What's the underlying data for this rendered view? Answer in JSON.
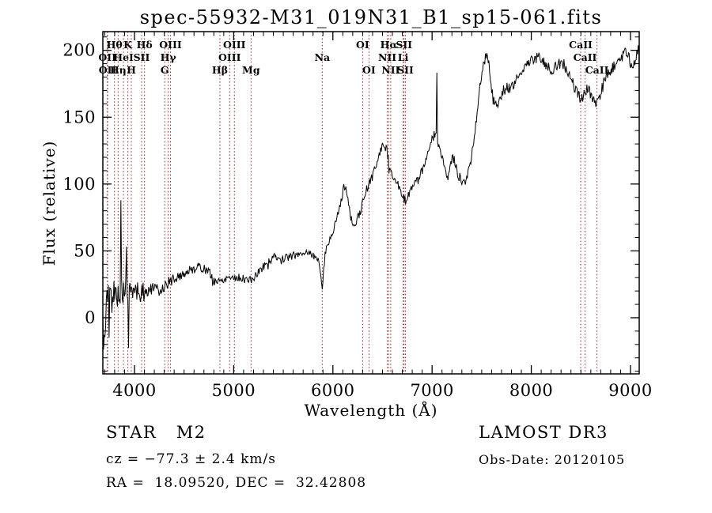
{
  "window": {
    "background": "#ffffff"
  },
  "chart_data": {
    "type": "line",
    "title": "spec-55932-M31_019N31_B1_sp15-061.fits",
    "xlabel": "Wavelength (Å)",
    "ylabel": "Flux (relative)",
    "xlim": [
      3681,
      9088
    ],
    "ylim": [
      -42,
      214
    ],
    "grid": false,
    "legend": "none",
    "frame_color": "#000000",
    "spectrum_color": "#000000",
    "line_marker_color": "#9b2d2d",
    "xticks": {
      "values": [
        4000,
        5000,
        6000,
        7000,
        8000,
        9000
      ],
      "labels": [
        "4000",
        "5000",
        "6000",
        "7000",
        "8000",
        "9000"
      ]
    },
    "yticks": {
      "values": [
        0,
        50,
        100,
        150,
        200
      ],
      "labels": [
        "0",
        "50",
        "100",
        "150",
        "200"
      ]
    },
    "x_minor_step": 100,
    "y_minor_step": 10,
    "spectral_lines": [
      {
        "wavelength": 3726,
        "label": "OII",
        "row": 2
      },
      {
        "wavelength": 3729,
        "label": "OII",
        "row": 3
      },
      {
        "wavelength": 3798,
        "label": "Hθ",
        "row": 1
      },
      {
        "wavelength": 3835,
        "label": "Hη",
        "row": 3
      },
      {
        "wavelength": 3889,
        "label": "HeI",
        "row": 2
      },
      {
        "wavelength": 3933,
        "label": "K",
        "row": 1
      },
      {
        "wavelength": 3968,
        "label": "H",
        "row": 3
      },
      {
        "wavelength": 4072,
        "label": "SII",
        "row": 2
      },
      {
        "wavelength": 4101,
        "label": "Hδ",
        "row": 1
      },
      {
        "wavelength": 4305,
        "label": "G",
        "row": 3
      },
      {
        "wavelength": 4340,
        "label": "Hγ",
        "row": 2
      },
      {
        "wavelength": 4363,
        "label": "OIII",
        "row": 1
      },
      {
        "wavelength": 4861,
        "label": "Hβ",
        "row": 3
      },
      {
        "wavelength": 4959,
        "label": "OIII",
        "row": 2
      },
      {
        "wavelength": 5007,
        "label": "OIII",
        "row": 1
      },
      {
        "wavelength": 5175,
        "label": "Mg",
        "row": 3
      },
      {
        "wavelength": 5893,
        "label": "Na",
        "row": 2
      },
      {
        "wavelength": 6300,
        "label": "OI",
        "row": 1
      },
      {
        "wavelength": 6364,
        "label": "OI",
        "row": 3
      },
      {
        "wavelength": 6548,
        "label": "NII",
        "row": 2
      },
      {
        "wavelength": 6563,
        "label": "Hα",
        "row": 1
      },
      {
        "wavelength": 6583,
        "label": "NII",
        "row": 3
      },
      {
        "wavelength": 6708,
        "label": "Li",
        "row": 2
      },
      {
        "wavelength": 6717,
        "label": "SII",
        "row": 1
      },
      {
        "wavelength": 6731,
        "label": "SII",
        "row": 3
      },
      {
        "wavelength": 8498,
        "label": "CaII",
        "row": 1
      },
      {
        "wavelength": 8542,
        "label": "CaII",
        "row": 2
      },
      {
        "wavelength": 8662,
        "label": "CaII",
        "row": 3
      }
    ],
    "continuum_anchors": [
      [
        3680,
        -5
      ],
      [
        3695,
        5
      ],
      [
        3710,
        10
      ],
      [
        3730,
        13
      ],
      [
        3760,
        16
      ],
      [
        3790,
        17
      ],
      [
        3820,
        18
      ],
      [
        3850,
        18
      ],
      [
        3880,
        19
      ],
      [
        3910,
        20
      ],
      [
        3940,
        18
      ],
      [
        3970,
        19
      ],
      [
        4000,
        21
      ],
      [
        4050,
        20
      ],
      [
        4101,
        19
      ],
      [
        4150,
        21
      ],
      [
        4200,
        22
      ],
      [
        4250,
        20
      ],
      [
        4305,
        24
      ],
      [
        4340,
        26
      ],
      [
        4400,
        29
      ],
      [
        4450,
        31
      ],
      [
        4500,
        33
      ],
      [
        4550,
        35
      ],
      [
        4600,
        37
      ],
      [
        4650,
        38
      ],
      [
        4700,
        37
      ],
      [
        4750,
        34
      ],
      [
        4800,
        28
      ],
      [
        4861,
        27
      ],
      [
        4900,
        29
      ],
      [
        4950,
        31
      ],
      [
        5000,
        30
      ],
      [
        5050,
        30
      ],
      [
        5100,
        29
      ],
      [
        5175,
        28
      ],
      [
        5220,
        31
      ],
      [
        5270,
        36
      ],
      [
        5320,
        40
      ],
      [
        5380,
        44
      ],
      [
        5430,
        46
      ],
      [
        5480,
        43
      ],
      [
        5530,
        45
      ],
      [
        5580,
        46
      ],
      [
        5640,
        47
      ],
      [
        5700,
        49
      ],
      [
        5760,
        49
      ],
      [
        5820,
        45
      ],
      [
        5860,
        42
      ],
      [
        5880,
        34
      ],
      [
        5893,
        19
      ],
      [
        5910,
        40
      ],
      [
        5930,
        52
      ],
      [
        5960,
        57
      ],
      [
        6000,
        64
      ],
      [
        6040,
        74
      ],
      [
        6080,
        88
      ],
      [
        6110,
        97
      ],
      [
        6140,
        95
      ],
      [
        6170,
        80
      ],
      [
        6200,
        67
      ],
      [
        6230,
        70
      ],
      [
        6270,
        78
      ],
      [
        6310,
        88
      ],
      [
        6350,
        98
      ],
      [
        6400,
        106
      ],
      [
        6450,
        118
      ],
      [
        6490,
        127
      ],
      [
        6520,
        130
      ],
      [
        6550,
        124
      ],
      [
        6563,
        114
      ],
      [
        6590,
        110
      ],
      [
        6620,
        106
      ],
      [
        6650,
        100
      ],
      [
        6680,
        93
      ],
      [
        6705,
        89
      ],
      [
        6730,
        87
      ],
      [
        6760,
        93
      ],
      [
        6800,
        98
      ],
      [
        6840,
        102
      ],
      [
        6880,
        106
      ],
      [
        6920,
        113
      ],
      [
        6960,
        124
      ],
      [
        7000,
        134
      ],
      [
        7030,
        138
      ],
      [
        7060,
        132
      ],
      [
        7100,
        120
      ],
      [
        7140,
        107
      ],
      [
        7160,
        102
      ],
      [
        7190,
        114
      ],
      [
        7210,
        121
      ],
      [
        7240,
        112
      ],
      [
        7270,
        106
      ],
      [
        7300,
        103
      ],
      [
        7330,
        102
      ],
      [
        7360,
        108
      ],
      [
        7400,
        122
      ],
      [
        7440,
        145
      ],
      [
        7480,
        172
      ],
      [
        7520,
        190
      ],
      [
        7550,
        198
      ],
      [
        7570,
        192
      ],
      [
        7590,
        178
      ],
      [
        7615,
        163
      ],
      [
        7640,
        158
      ],
      [
        7665,
        160
      ],
      [
        7690,
        166
      ],
      [
        7720,
        170
      ],
      [
        7760,
        172
      ],
      [
        7800,
        172
      ],
      [
        7840,
        176
      ],
      [
        7880,
        182
      ],
      [
        7920,
        187
      ],
      [
        7960,
        190
      ],
      [
        8000,
        192
      ],
      [
        8040,
        194
      ],
      [
        8080,
        196
      ],
      [
        8120,
        193
      ],
      [
        8160,
        188
      ],
      [
        8200,
        185
      ],
      [
        8240,
        187
      ],
      [
        8280,
        190
      ],
      [
        8320,
        190
      ],
      [
        8360,
        185
      ],
      [
        8400,
        180
      ],
      [
        8440,
        172
      ],
      [
        8470,
        166
      ],
      [
        8500,
        163
      ],
      [
        8530,
        168
      ],
      [
        8560,
        172
      ],
      [
        8590,
        168
      ],
      [
        8620,
        163
      ],
      [
        8650,
        160
      ],
      [
        8680,
        163
      ],
      [
        8700,
        168
      ],
      [
        8730,
        175
      ],
      [
        8760,
        180
      ],
      [
        8800,
        185
      ],
      [
        8840,
        188
      ],
      [
        8880,
        192
      ],
      [
        8920,
        196
      ],
      [
        8950,
        199
      ],
      [
        8980,
        196
      ],
      [
        9010,
        190
      ],
      [
        9040,
        193
      ],
      [
        9070,
        200
      ],
      [
        9082,
        205
      ],
      [
        9088,
        160
      ]
    ],
    "noise_regions": [
      [
        3681,
        20
      ],
      [
        3725,
        13
      ],
      [
        3800,
        10
      ],
      [
        3955,
        7
      ],
      [
        4105,
        4.5
      ],
      [
        4400,
        3.5
      ],
      [
        5000,
        3
      ],
      [
        5880,
        3.5
      ],
      [
        6600,
        4
      ],
      [
        7200,
        4
      ],
      [
        8300,
        4.5
      ],
      [
        9000,
        6
      ]
    ],
    "spikes": [
      {
        "wavelength": 3688,
        "amp": -35,
        "halfwidth": 5
      },
      {
        "wavelength": 3700,
        "amp": -40,
        "halfwidth": 6
      },
      {
        "wavelength": 3745,
        "amp": -28,
        "halfwidth": 5
      },
      {
        "wavelength": 3863,
        "amp": 70,
        "halfwidth": 7
      },
      {
        "wavelength": 3920,
        "amp": 46,
        "halfwidth": 6
      },
      {
        "wavelength": 3940,
        "amp": -48,
        "halfwidth": 5
      },
      {
        "wavelength": 4055,
        "amp": -22,
        "halfwidth": 5
      },
      {
        "wavelength": 4790,
        "amp": -9,
        "halfwidth": 5
      },
      {
        "wavelength": 5345,
        "amp": -11,
        "halfwidth": 5
      },
      {
        "wavelength": 6563,
        "amp": -8,
        "halfwidth": 5
      },
      {
        "wavelength": 7048,
        "amp": 45,
        "halfwidth": 6
      },
      {
        "wavelength": 9085,
        "amp": 15,
        "halfwidth": 7
      }
    ],
    "noise_seed": 5,
    "sample_step": 7
  },
  "annotations": {
    "star_class": "STAR   M2",
    "cz": "cz = −77.3 ± 2.4 km/s",
    "radec": "RA =  18.09520, DEC =  32.42808",
    "survey": "LAMOST DR3",
    "obs_date": "Obs-Date: 20120105"
  }
}
